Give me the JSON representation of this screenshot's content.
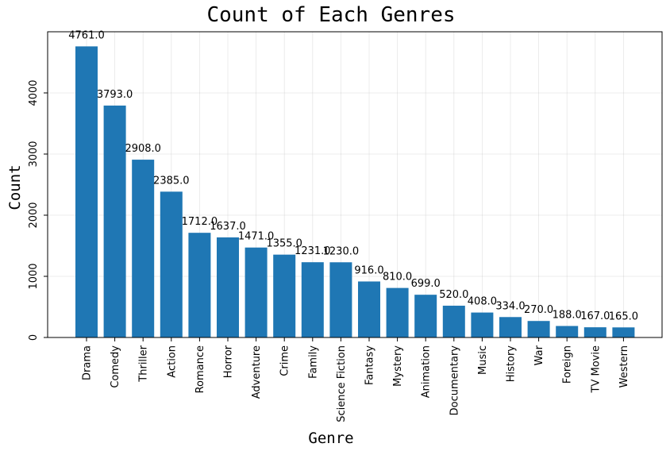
{
  "chart_data": {
    "type": "bar",
    "title": "Count of Each Genres",
    "xlabel": "Genre",
    "ylabel": "Count",
    "categories": [
      "Drama",
      "Comedy",
      "Thriller",
      "Action",
      "Romance",
      "Horror",
      "Adventure",
      "Crime",
      "Family",
      "Science Fiction",
      "Fantasy",
      "Mystery",
      "Animation",
      "Documentary",
      "Music",
      "History",
      "War",
      "Foreign",
      "TV Movie",
      "Western"
    ],
    "values": [
      4761,
      3793,
      2908,
      2385,
      1712,
      1637,
      1471,
      1355,
      1231,
      1230,
      916,
      810,
      699,
      520,
      408,
      334,
      270,
      188,
      167,
      165
    ],
    "value_labels": [
      "4761.0",
      "3793.0",
      "2908.0",
      "2385.0",
      "1712.0",
      "1637.0",
      "1471.0",
      "1355.0",
      "1231.0",
      "1230.0",
      "916.0",
      "810.0",
      "699.0",
      "520.0",
      "408.0",
      "334.0",
      "270.0",
      "188.0",
      "167.0",
      "165.0"
    ],
    "yticks": [
      0,
      1000,
      2000,
      3000,
      4000
    ],
    "ylim": [
      0,
      5000
    ],
    "grid": true,
    "bar_color": "#1f77b4"
  }
}
